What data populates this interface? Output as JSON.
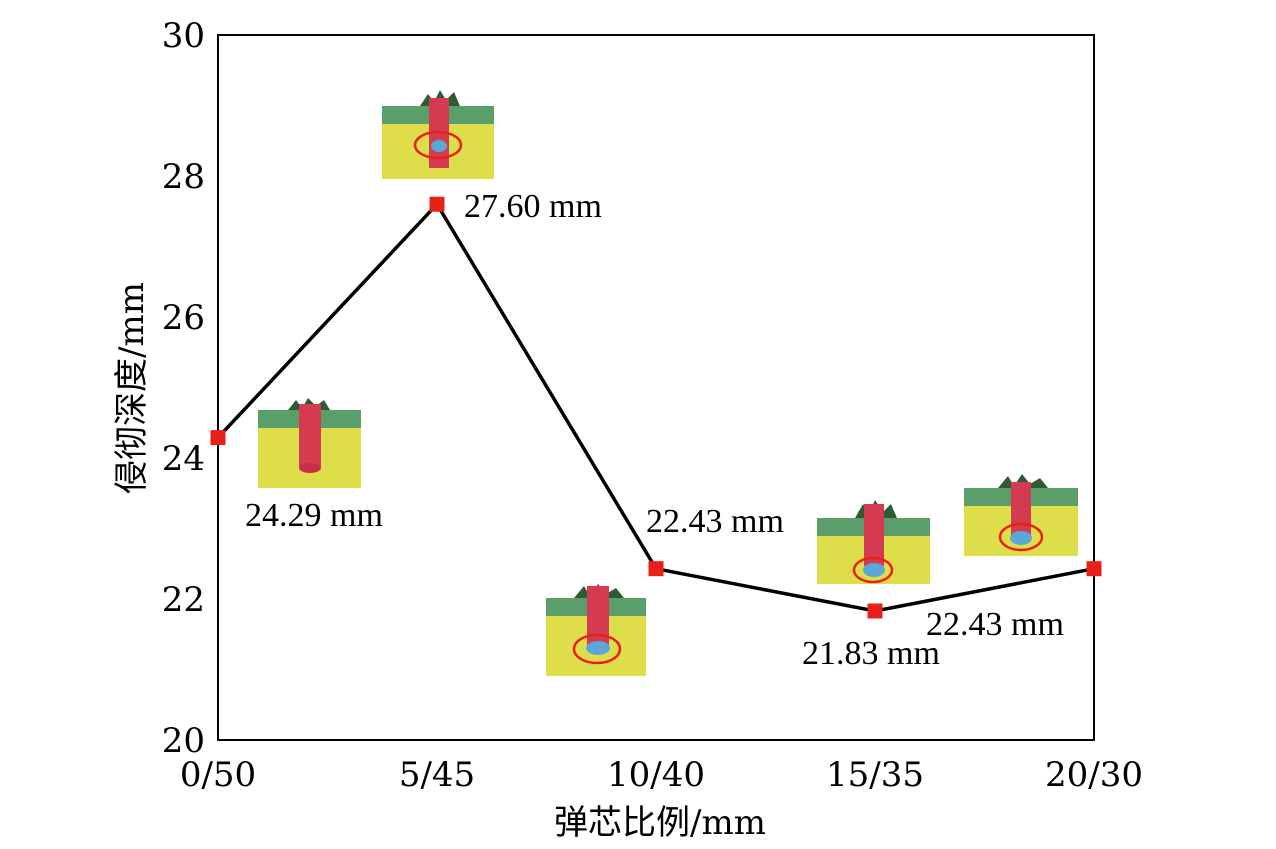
{
  "chart_data": {
    "type": "line",
    "categories": [
      "0/50",
      "5/45",
      "10/40",
      "15/35",
      "20/30"
    ],
    "values": [
      24.29,
      27.6,
      22.43,
      21.83,
      22.43
    ],
    "labels": [
      "24.29 mm",
      "27.60 mm",
      "22.43 mm",
      "21.83 mm",
      "22.43 mm"
    ],
    "xlabel": "弹芯比例/mm",
    "ylabel": "侵彻深度/mm",
    "ylim": [
      20,
      30
    ],
    "yticks": [
      "20",
      "22",
      "24",
      "26",
      "28",
      "30"
    ],
    "grid": false,
    "legend": "none",
    "colors": {
      "line": "#000000",
      "marker": "#e8201a",
      "target_top": "#5a9e6a",
      "target_body": "#dede4a",
      "projectile": "#d43a50",
      "core": "#5aa8d8",
      "highlight_circle": "#e8201a"
    }
  }
}
